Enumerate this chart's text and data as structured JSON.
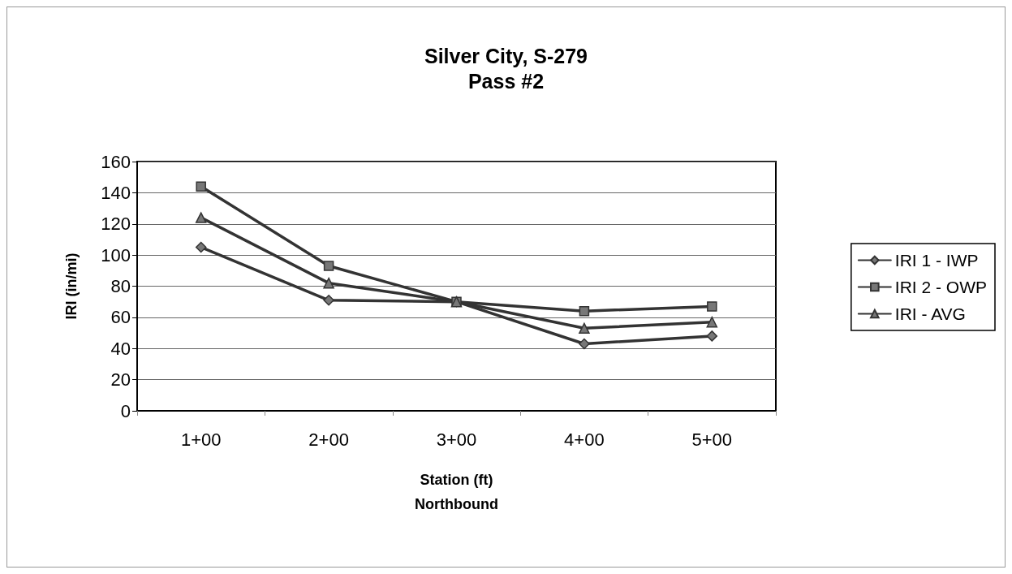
{
  "chart_data": {
    "type": "line",
    "title": "Silver City, S-279",
    "subtitle": "Pass #2",
    "xlabel": "Station (ft)\nNorthbound",
    "ylabel": "IRI (in/mi)",
    "categories": [
      "1+00",
      "2+00",
      "3+00",
      "4+00",
      "5+00"
    ],
    "series": [
      {
        "name": "IRI 1 - IWP",
        "color": "#333333",
        "marker": "diamond",
        "values": [
          105,
          71,
          70,
          43,
          48
        ]
      },
      {
        "name": "IRI 2 - OWP",
        "color": "#333333",
        "marker": "square",
        "values": [
          144,
          93,
          70,
          64,
          67
        ]
      },
      {
        "name": "IRI - AVG",
        "color": "#333333",
        "marker": "triangle",
        "values": [
          124,
          82,
          70,
          53,
          57
        ]
      }
    ],
    "ylim": [
      0,
      160
    ],
    "yticks": [
      0,
      20,
      40,
      60,
      80,
      100,
      120,
      140,
      160
    ],
    "grid": "y",
    "legend": "right",
    "line_style": "solid"
  }
}
